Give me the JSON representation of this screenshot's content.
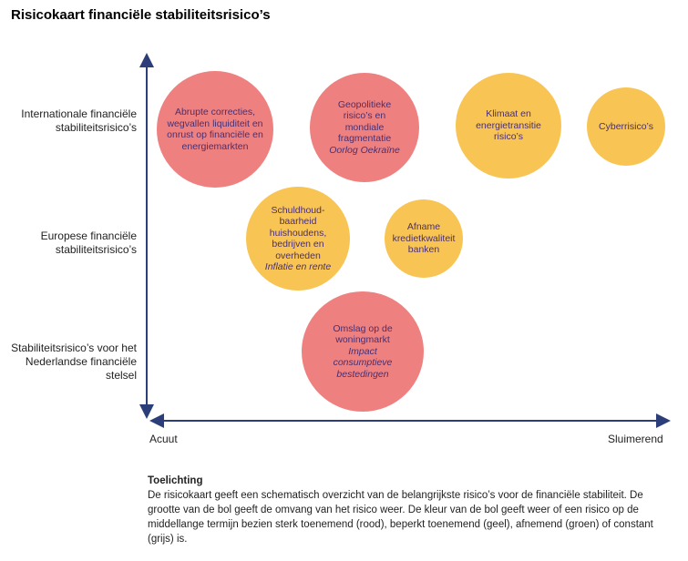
{
  "title": "Risicokaart financiële stabiliteitsrisico’s",
  "y_axis": [
    "Internationale financiële stabiliteitsrisico’s",
    "Europese financiële stabiliteitsrisico’s",
    "Stabiliteitsrisico’s voor het Nederlandse financiële stelsel"
  ],
  "x_axis": {
    "left": "Acuut",
    "right": "Sluimerend"
  },
  "bubbles": [
    {
      "text": "Abrupte correcties, wegvallen liquiditeit en onrust op financiële en energiemarkten",
      "sub": "",
      "color": "#ef8080"
    },
    {
      "text": "Geopolitieke risico’s en mondiale fragmentatie",
      "sub": "Oorlog Oekraïne",
      "color": "#ef8080"
    },
    {
      "text": "Klimaat en energietransitie risico’s",
      "sub": "",
      "color": "#f8c555"
    },
    {
      "text": "Cyberrisico’s",
      "sub": "",
      "color": "#f8c555"
    },
    {
      "text": "Schuldhoud-baarheid huishoudens, bedrijven en overheden",
      "sub": "Inflatie en rente",
      "color": "#f8c555"
    },
    {
      "text": "Afname kredietkwaliteit banken",
      "sub": "",
      "color": "#f8c555"
    },
    {
      "text": "Omslag op de woningmarkt",
      "sub": "Impact consumptieve bestedingen",
      "color": "#ef8080"
    }
  ],
  "note": {
    "heading": "Toelichting",
    "body": "De risicokaart geeft een schematisch overzicht van de belangrijkste risico’s voor de financiële stabiliteit. De grootte van de bol geeft de omvang van het risico weer. De kleur van de bol geeft weer of een risico op de middellange termijn bezien sterk toenemend (rood), beperkt toenemend (geel), afnemend (groen) of constant (grijs) is."
  }
}
